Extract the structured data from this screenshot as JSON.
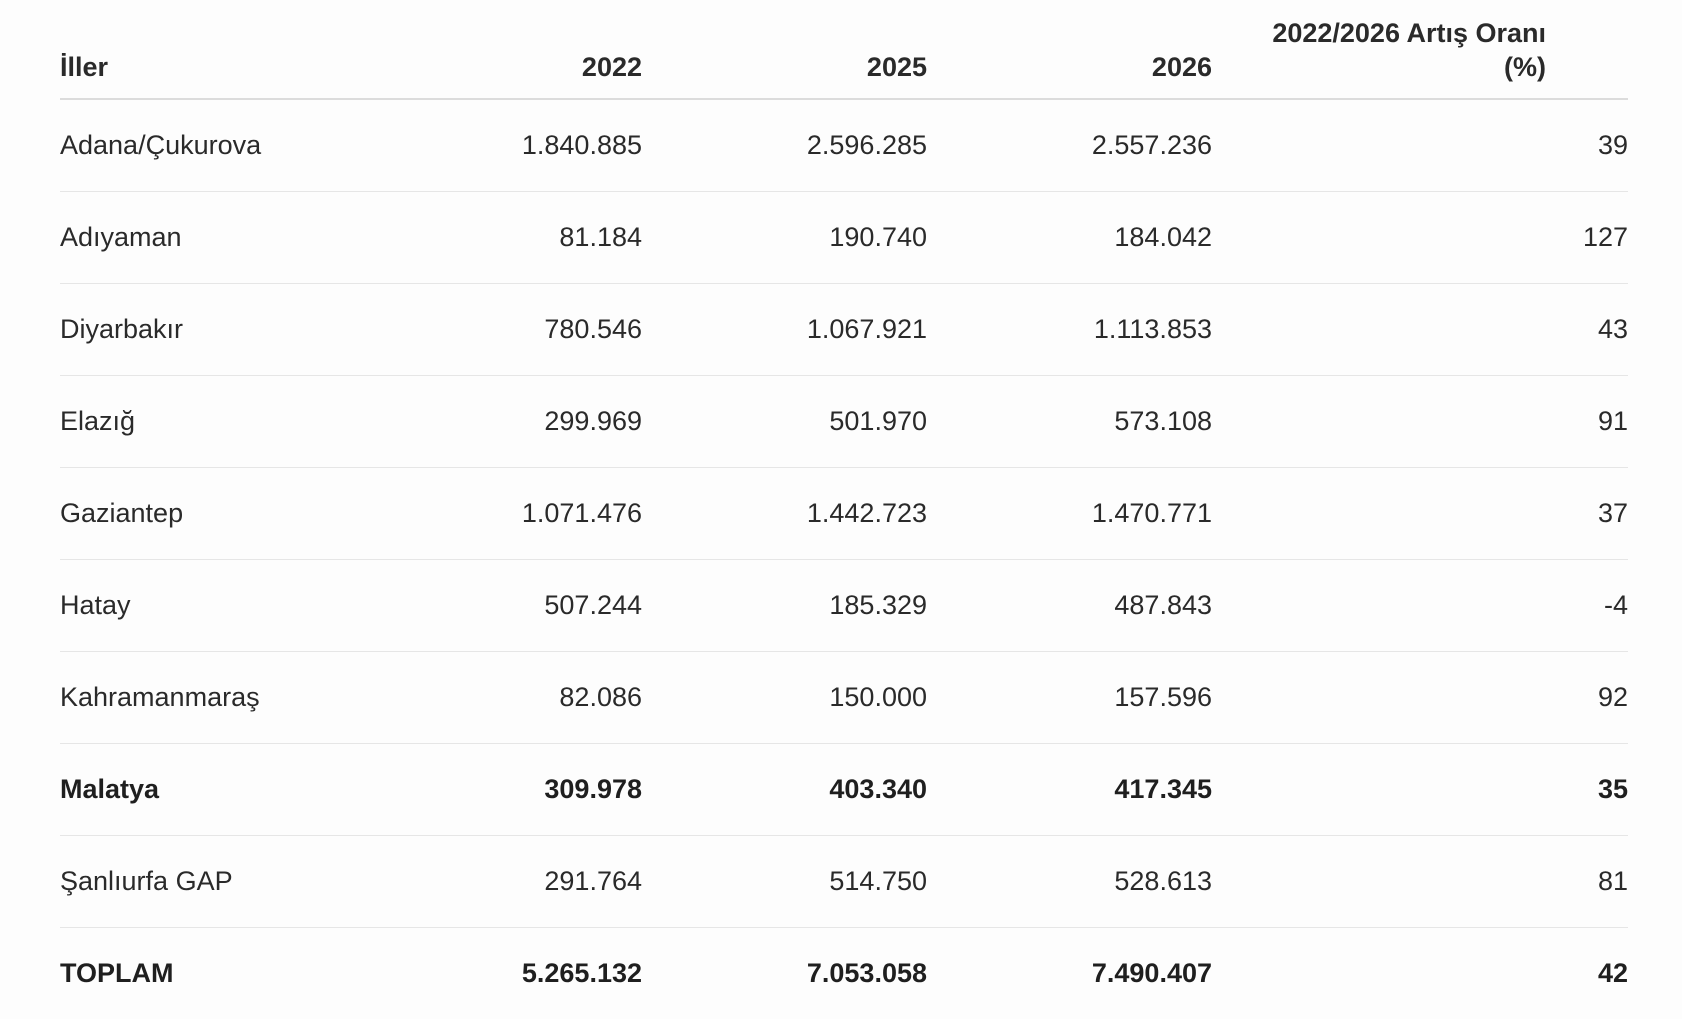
{
  "table": {
    "headers": {
      "name": "İller",
      "y2022": "2022",
      "y2025": "2025",
      "y2026": "2026",
      "pct_line1": "2022/2026 Artış Oranı",
      "pct_line2": "(%)"
    },
    "rows": [
      {
        "name": "Adana/Çukurova",
        "y2022": "1.840.885",
        "y2025": "2.596.285",
        "y2026": "2.557.236",
        "pct": "39",
        "bold": false
      },
      {
        "name": "Adıyaman",
        "y2022": "81.184",
        "y2025": "190.740",
        "y2026": "184.042",
        "pct": "127",
        "bold": false
      },
      {
        "name": "Diyarbakır",
        "y2022": "780.546",
        "y2025": "1.067.921",
        "y2026": "1.113.853",
        "pct": "43",
        "bold": false
      },
      {
        "name": "Elazığ",
        "y2022": "299.969",
        "y2025": "501.970",
        "y2026": "573.108",
        "pct": "91",
        "bold": false
      },
      {
        "name": "Gaziantep",
        "y2022": "1.071.476",
        "y2025": "1.442.723",
        "y2026": "1.470.771",
        "pct": "37",
        "bold": false
      },
      {
        "name": "Hatay",
        "y2022": "507.244",
        "y2025": "185.329",
        "y2026": "487.843",
        "pct": "-4",
        "bold": false
      },
      {
        "name": "Kahramanmaraş",
        "y2022": "82.086",
        "y2025": "150.000",
        "y2026": "157.596",
        "pct": "92",
        "bold": false
      },
      {
        "name": "Malatya",
        "y2022": "309.978",
        "y2025": "403.340",
        "y2026": "417.345",
        "pct": "35",
        "bold": true
      },
      {
        "name": "Şanlıurfa GAP",
        "y2022": "291.764",
        "y2025": "514.750",
        "y2026": "528.613",
        "pct": "81",
        "bold": false
      },
      {
        "name": "TOPLAM",
        "y2022": "5.265.132",
        "y2025": "7.053.058",
        "y2026": "7.490.407",
        "pct": "42",
        "bold": true
      }
    ]
  }
}
